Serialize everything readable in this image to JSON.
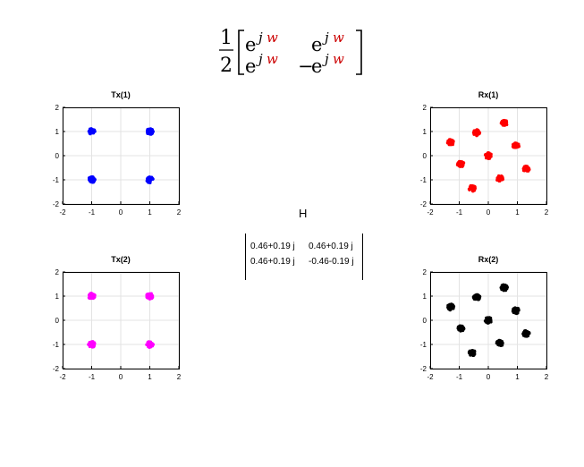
{
  "formula": {
    "fraction_numerator": "1",
    "fraction_denominator": "2",
    "base": "e",
    "exponent_j": "j",
    "exponent_w": "w",
    "minus": "−",
    "accent_color": "#cc0000"
  },
  "channel": {
    "label": "H",
    "cells": [
      [
        "0.46+0.19 j",
        "0.46+0.19 j"
      ],
      [
        "0.46+0.19 j",
        "-0.46-0.19 j"
      ]
    ]
  },
  "chart_data": [
    {
      "type": "scatter",
      "id": "tx1",
      "title": "Tx(1)",
      "color": "#0000ff",
      "xlim": [
        -2,
        2
      ],
      "ylim": [
        -2,
        2
      ],
      "xticks": [
        -2,
        -1,
        0,
        1,
        2
      ],
      "yticks": [
        -2,
        -1,
        0,
        1,
        2
      ],
      "grid": true,
      "points": [
        [
          -1,
          1
        ],
        [
          1,
          1
        ],
        [
          -1,
          -1
        ],
        [
          1,
          -1
        ]
      ]
    },
    {
      "type": "scatter",
      "id": "rx1",
      "title": "Rx(1)",
      "color": "#ff0000",
      "xlim": [
        -2,
        2
      ],
      "ylim": [
        -2,
        2
      ],
      "xticks": [
        -2,
        -1,
        0,
        1,
        2
      ],
      "yticks": [
        -2,
        -1,
        0,
        1,
        2
      ],
      "grid": true,
      "points": [
        [
          -1.3,
          0.55
        ],
        [
          -0.4,
          0.95
        ],
        [
          0.55,
          1.35
        ],
        [
          0.95,
          0.4
        ],
        [
          -0.95,
          -0.35
        ],
        [
          0.0,
          0.0
        ],
        [
          1.3,
          -0.55
        ],
        [
          0.4,
          -0.95
        ],
        [
          -0.55,
          -1.35
        ]
      ]
    },
    {
      "type": "scatter",
      "id": "tx2",
      "title": "Tx(2)",
      "color": "#ff00ff",
      "xlim": [
        -2,
        2
      ],
      "ylim": [
        -2,
        2
      ],
      "xticks": [
        -2,
        -1,
        0,
        1,
        2
      ],
      "yticks": [
        -2,
        -1,
        0,
        1,
        2
      ],
      "grid": true,
      "points": [
        [
          -1,
          1
        ],
        [
          1,
          1
        ],
        [
          -1,
          -1
        ],
        [
          1,
          -1
        ]
      ]
    },
    {
      "type": "scatter",
      "id": "rx2",
      "title": "Rx(2)",
      "color": "#000000",
      "xlim": [
        -2,
        2
      ],
      "ylim": [
        -2,
        2
      ],
      "xticks": [
        -2,
        -1,
        0,
        1,
        2
      ],
      "yticks": [
        -2,
        -1,
        0,
        1,
        2
      ],
      "grid": true,
      "points": [
        [
          -1.3,
          0.55
        ],
        [
          -0.4,
          0.95
        ],
        [
          0.55,
          1.35
        ],
        [
          0.95,
          0.4
        ],
        [
          -0.95,
          -0.35
        ],
        [
          0.0,
          0.0
        ],
        [
          1.3,
          -0.55
        ],
        [
          0.4,
          -0.95
        ],
        [
          -0.55,
          -1.35
        ]
      ]
    }
  ]
}
